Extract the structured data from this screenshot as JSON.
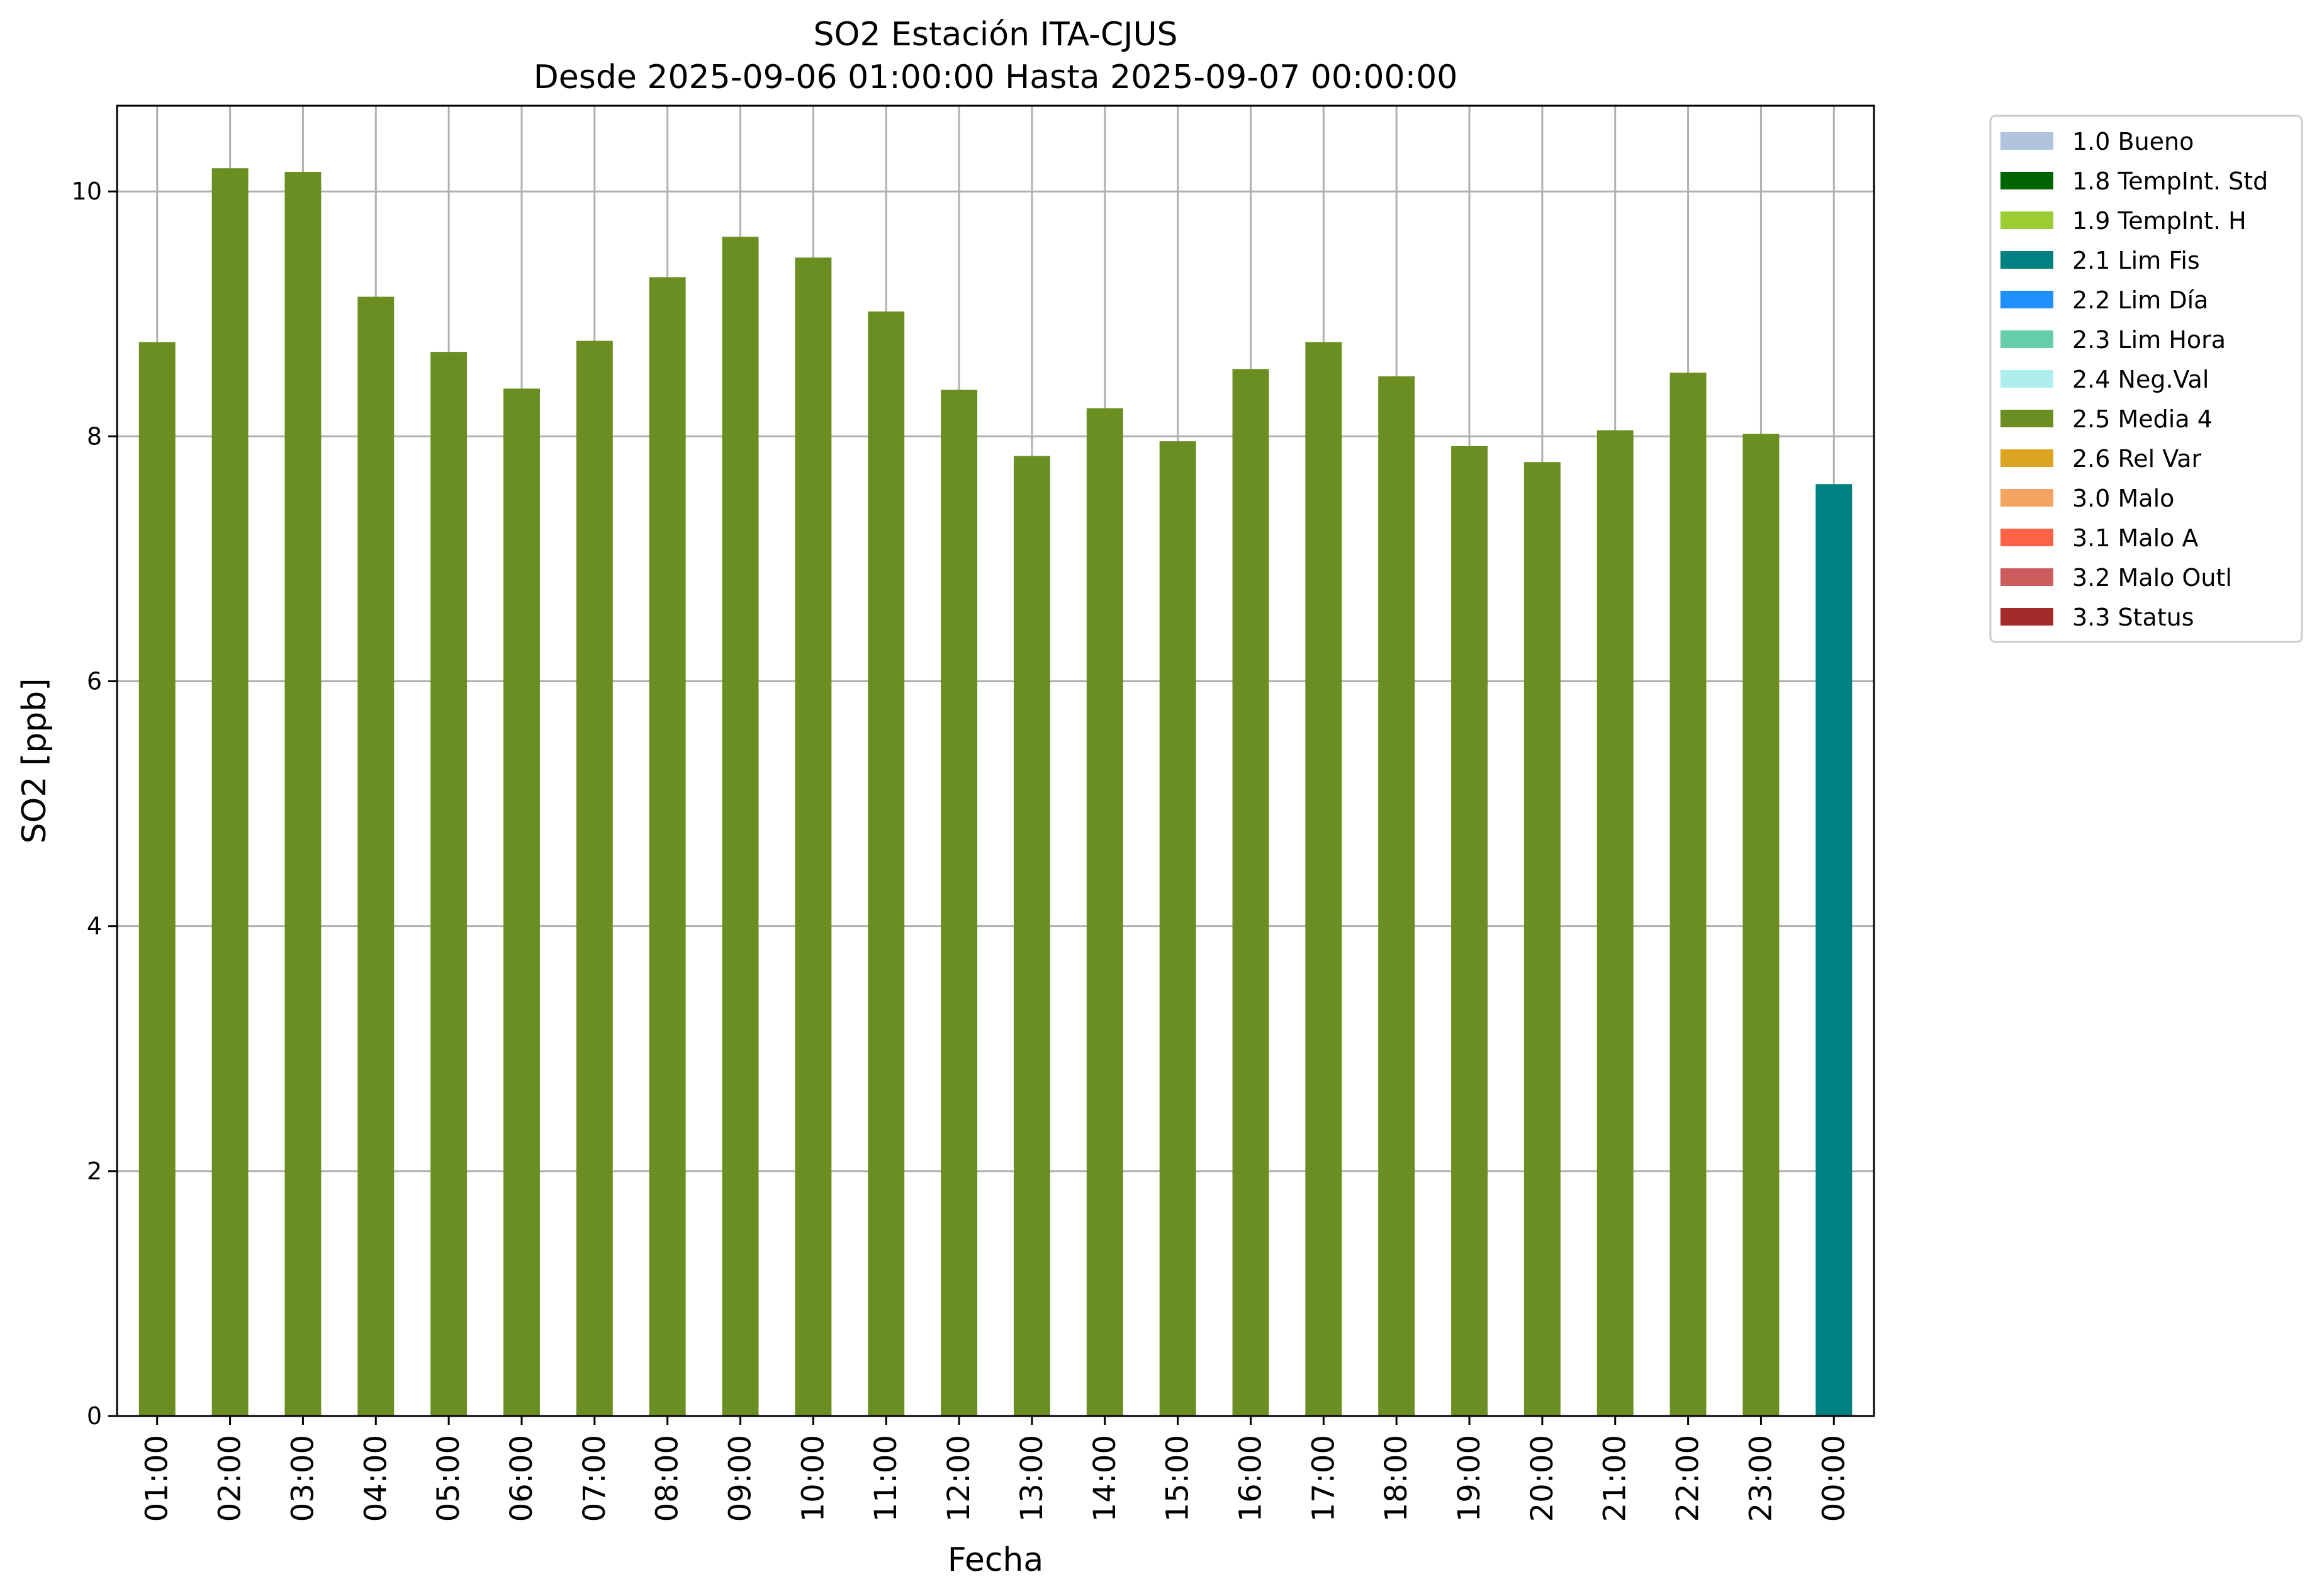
{
  "chart_data": {
    "type": "bar",
    "title": "SO2 Estación ITA-CJUS",
    "subtitle": "Desde 2025-09-06 01:00:00 Hasta 2025-09-07 00:00:00",
    "xlabel": "Fecha",
    "ylabel": "SO2 [ppb]",
    "ylim": [
      0,
      10.7
    ],
    "yticks": [
      "0",
      "2",
      "4",
      "6",
      "8",
      "10"
    ],
    "grid": true,
    "legend_position": "outside-top-right",
    "categories": [
      "01:00",
      "02:00",
      "03:00",
      "04:00",
      "05:00",
      "06:00",
      "07:00",
      "08:00",
      "09:00",
      "10:00",
      "11:00",
      "12:00",
      "13:00",
      "14:00",
      "15:00",
      "16:00",
      "17:00",
      "18:00",
      "19:00",
      "20:00",
      "21:00",
      "22:00",
      "23:00",
      "00:00"
    ],
    "values": [
      8.77,
      10.19,
      10.16,
      9.14,
      8.69,
      8.39,
      8.78,
      9.3,
      9.63,
      9.46,
      9.02,
      8.38,
      7.84,
      8.23,
      7.96,
      8.55,
      8.77,
      8.49,
      7.92,
      7.79,
      8.05,
      8.52,
      8.02,
      7.61
    ],
    "bar_flags": [
      "2.5 Media 4",
      "2.5 Media 4",
      "2.5 Media 4",
      "2.5 Media 4",
      "2.5 Media 4",
      "2.5 Media 4",
      "2.5 Media 4",
      "2.5 Media 4",
      "2.5 Media 4",
      "2.5 Media 4",
      "2.5 Media 4",
      "2.5 Media 4",
      "2.5 Media 4",
      "2.5 Media 4",
      "2.5 Media 4",
      "2.5 Media 4",
      "2.5 Media 4",
      "2.5 Media 4",
      "2.5 Media 4",
      "2.5 Media 4",
      "2.5 Media 4",
      "2.5 Media 4",
      "2.5 Media 4",
      "2.1 Lim Fis"
    ],
    "legend": [
      {
        "label": "1.0 Bueno",
        "color": "#b0c4de"
      },
      {
        "label": "1.8 TempInt. Std",
        "color": "#006400"
      },
      {
        "label": "1.9 TempInt. H",
        "color": "#9acd32"
      },
      {
        "label": "2.1 Lim Fis",
        "color": "#008080"
      },
      {
        "label": "2.2 Lim Día",
        "color": "#1e90ff"
      },
      {
        "label": "2.3 Lim Hora",
        "color": "#66cdaa"
      },
      {
        "label": "2.4 Neg.Val",
        "color": "#afeeee"
      },
      {
        "label": "2.5 Media 4",
        "color": "#6b8e23"
      },
      {
        "label": "2.6 Rel Var",
        "color": "#daa520"
      },
      {
        "label": "3.0 Malo",
        "color": "#f4a460"
      },
      {
        "label": "3.1 Malo A",
        "color": "#ff6347"
      },
      {
        "label": "3.2 Malo Outl",
        "color": "#cd5c5c"
      },
      {
        "label": "3.3 Status",
        "color": "#a52a2a"
      }
    ]
  }
}
